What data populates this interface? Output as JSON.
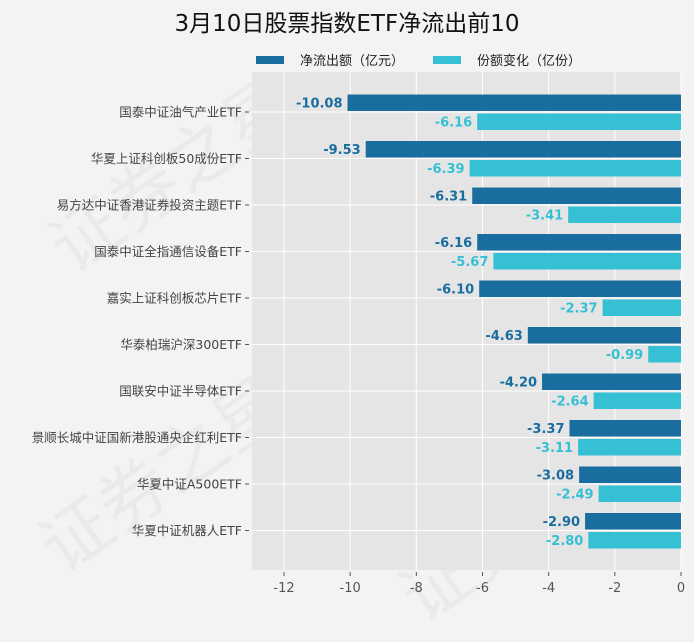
{
  "watermark": "证券之星",
  "colors": {
    "outflow": "#1a6e9f",
    "share": "#35c0d4",
    "plot_bg": "#e5e5e5",
    "page_bg": "#f3f3f3",
    "grid": "#ffffff",
    "outflow_label": "#1a6e9f",
    "share_label": "#35c0d4"
  },
  "chart_data": {
    "type": "bar",
    "orientation": "horizontal",
    "title": "3月10日股票指数ETF净流出前10",
    "xlabel": "",
    "ylabel": "",
    "xlim": [
      -13,
      0
    ],
    "x_ticks": [
      -12,
      -10,
      -8,
      -6,
      -4,
      -2,
      0
    ],
    "x_tick_labels": [
      "-12",
      "-10",
      "-8",
      "-6",
      "-4",
      "-2",
      "0"
    ],
    "grid": true,
    "legend_position": "top",
    "categories": [
      "国泰中证油气产业ETF",
      "华夏上证科创板50成份ETF",
      "易方达中证香港证券投资主题ETF",
      "国泰中证全指通信设备ETF",
      "嘉实上证科创板芯片ETF",
      "华泰柏瑞沪深300ETF",
      "国联安中证半导体ETF",
      "景顺长城中证国新港股通央企红利ETF",
      "华夏中证A500ETF",
      "华夏中证机器人ETF"
    ],
    "series": [
      {
        "name": "净流出额（亿元）",
        "values": [
          -10.08,
          -9.53,
          -6.31,
          -6.16,
          -6.1,
          -4.63,
          -4.2,
          -3.37,
          -3.08,
          -2.9
        ],
        "labels": [
          "-10.08",
          "-9.53",
          "-6.31",
          "-6.16",
          "-6.10",
          "-4.63",
          "-4.20",
          "-3.37",
          "-3.08",
          "-2.90"
        ]
      },
      {
        "name": "份额变化（亿份）",
        "values": [
          -6.16,
          -6.39,
          -3.41,
          -5.67,
          -2.37,
          -0.99,
          -2.64,
          -3.11,
          -2.49,
          -2.8
        ],
        "labels": [
          "-6.16",
          "-6.39",
          "-3.41",
          "-5.67",
          "-2.37",
          "-0.99",
          "-2.64",
          "-3.11",
          "-2.49",
          "-2.80"
        ]
      }
    ]
  }
}
